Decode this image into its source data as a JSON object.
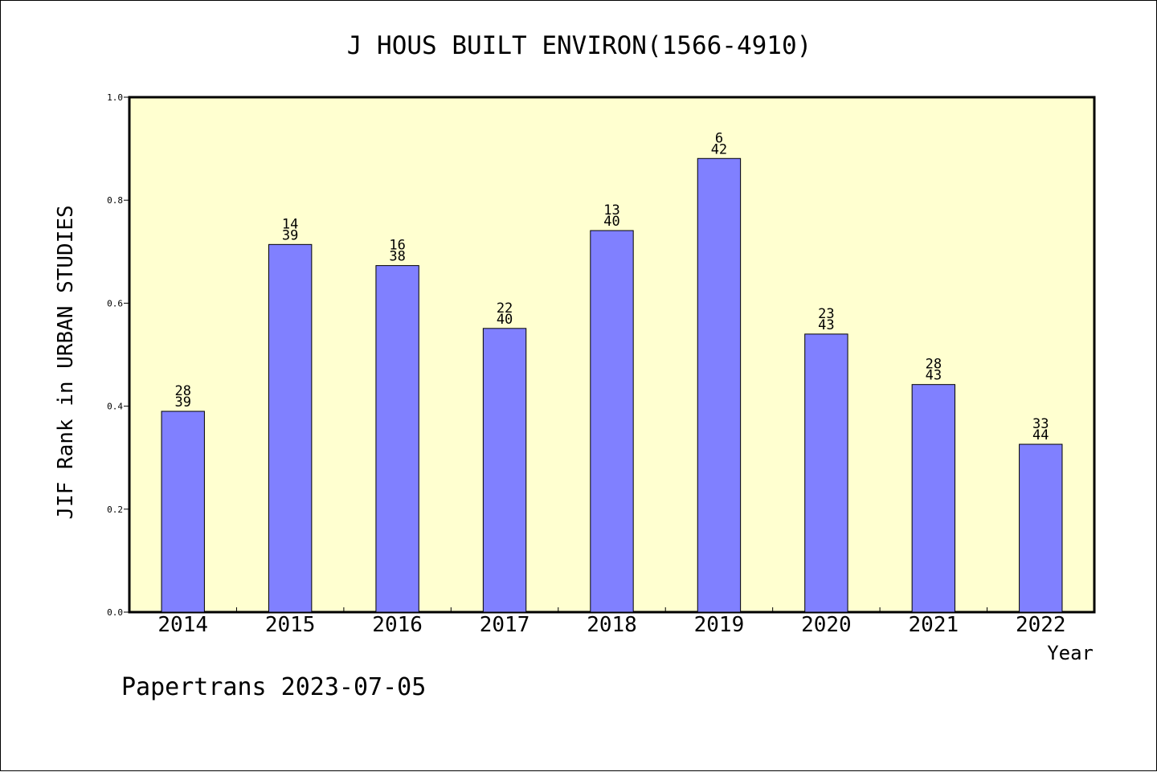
{
  "chart_data": {
    "type": "bar",
    "title": "J HOUS BUILT ENVIRON(1566-4910)",
    "xlabel": "Year",
    "ylabel": "JIF Rank in URBAN STUDIES",
    "footer": "Papertrans 2023-07-05",
    "ylim": [
      0,
      1.0
    ],
    "yticks": [
      "0.0",
      "0.2",
      "0.4",
      "0.6",
      "0.8",
      "1.0"
    ],
    "categories": [
      "2014",
      "2015",
      "2016",
      "2017",
      "2018",
      "2019",
      "2020",
      "2021",
      "2022"
    ],
    "values": [
      0.39,
      0.714,
      0.673,
      0.551,
      0.741,
      0.881,
      0.54,
      0.442,
      0.326
    ],
    "labels_top": [
      "28",
      "14",
      "16",
      "22",
      "13",
      "6",
      "23",
      "28",
      "33"
    ],
    "labels_bottom": [
      "39",
      "39",
      "38",
      "40",
      "40",
      "42",
      "43",
      "43",
      "44"
    ],
    "grid": false,
    "colors": {
      "plot_background": "#ffffd0",
      "bar_fill": "#8080ff",
      "bar_stroke": "#000000"
    }
  }
}
